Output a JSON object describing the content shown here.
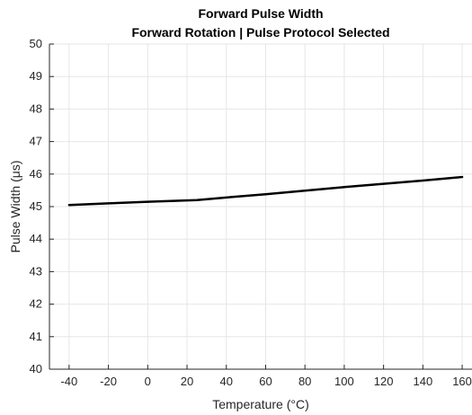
{
  "chart_data": {
    "type": "line",
    "title": "Forward Pulse Width",
    "subtitle": "Forward Rotation | Pulse Protocol Selected",
    "xlabel": "Temperature (°C)",
    "ylabel": "Pulse Width (μs)",
    "xlim": [
      -50,
      165
    ],
    "ylim": [
      40,
      50
    ],
    "xticks": [
      -40,
      -20,
      0,
      20,
      40,
      60,
      80,
      100,
      120,
      140,
      160
    ],
    "yticks": [
      40,
      41,
      42,
      43,
      44,
      45,
      46,
      47,
      48,
      49,
      50
    ],
    "grid": true,
    "series": [
      {
        "color": "#000000",
        "x": [
          -40,
          -20,
          0,
          25,
          40,
          60,
          80,
          100,
          120,
          140,
          160
        ],
        "y": [
          45.05,
          45.1,
          45.15,
          45.2,
          45.28,
          45.38,
          45.49,
          45.6,
          45.7,
          45.8,
          45.91
        ]
      }
    ]
  }
}
